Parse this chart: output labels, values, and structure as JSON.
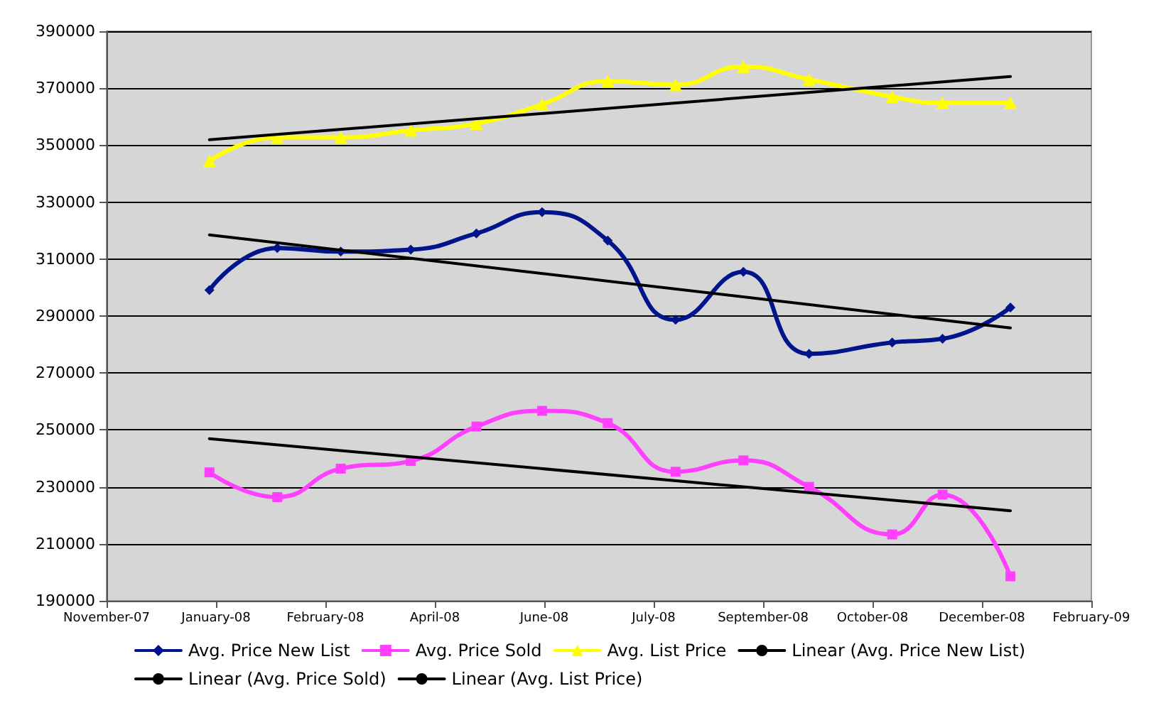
{
  "chart_data": {
    "type": "line",
    "x": [
      "2008-01-02",
      "2008-02-02",
      "2008-03-02",
      "2008-04-03",
      "2008-05-03",
      "2008-06-02",
      "2008-07-02",
      "2008-08-02",
      "2008-09-02",
      "2008-10-02",
      "2008-11-09",
      "2008-12-02",
      "2009-01-02"
    ],
    "series": [
      {
        "name": "Avg. Price New List",
        "color": "#00148c",
        "marker": "diamond",
        "values": [
          299100,
          313900,
          312600,
          313300,
          319000,
          326500,
          316500,
          288700,
          305500,
          276700,
          280700,
          282000,
          293000
        ]
      },
      {
        "name": "Avg. Price Sold",
        "color": "#ff40ff",
        "marker": "square",
        "values": [
          235100,
          226400,
          236400,
          239100,
          251200,
          256700,
          252400,
          235300,
          239300,
          230000,
          213300,
          227300,
          198600
        ]
      },
      {
        "name": "Avg. List Price",
        "color": "#ffff00",
        "marker": "triangle",
        "values": [
          344400,
          352700,
          352700,
          355200,
          357600,
          364300,
          372500,
          371200,
          377600,
          373100,
          367000,
          364800,
          364800
        ]
      },
      {
        "name": "Linear (Avg. Price New List)",
        "color": "#000000",
        "marker": "none",
        "x": [
          "2008-01-02",
          "2009-01-02"
        ],
        "values": [
          318500,
          285800
        ]
      },
      {
        "name": "Linear (Avg. Price Sold)",
        "color": "#000000",
        "marker": "none",
        "x": [
          "2008-01-02",
          "2009-01-02"
        ],
        "values": [
          246900,
          221600
        ]
      },
      {
        "name": "Linear (Avg. List Price)",
        "color": "#000000",
        "marker": "none",
        "x": [
          "2008-01-02",
          "2009-01-02"
        ],
        "values": [
          351900,
          374100
        ]
      }
    ],
    "xlim": [
      "2007-11-16",
      "2009-02-08"
    ],
    "xticks": [
      {
        "value": "2007-11-16",
        "label": "November-07"
      },
      {
        "value": "2008-01-05",
        "label": "January-08"
      },
      {
        "value": "2008-02-24",
        "label": "February-08"
      },
      {
        "value": "2008-04-14",
        "label": "April-08"
      },
      {
        "value": "2008-06-03",
        "label": "June-08"
      },
      {
        "value": "2008-07-23",
        "label": "July-08"
      },
      {
        "value": "2008-09-11",
        "label": "September-08"
      },
      {
        "value": "2008-10-31",
        "label": "October-08"
      },
      {
        "value": "2008-12-20",
        "label": "December-08"
      },
      {
        "value": "2009-02-08",
        "label": "February-09"
      }
    ],
    "ylim": [
      190000,
      390000
    ],
    "yticks": [
      190000,
      210000,
      230000,
      250000,
      270000,
      290000,
      310000,
      330000,
      350000,
      370000,
      390000
    ],
    "grid": "y",
    "legend": "bottom"
  }
}
